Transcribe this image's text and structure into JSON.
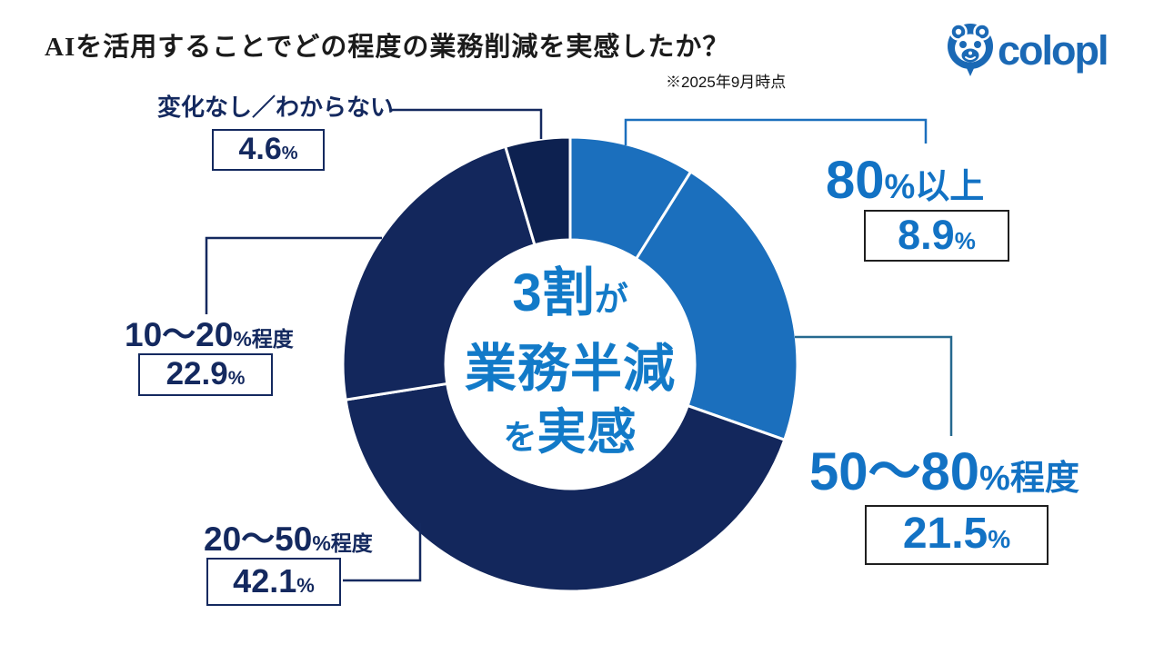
{
  "header": {
    "title": "AIを活用することでどの程度の業務削減を実感したか？",
    "note": "※2025年9月時点"
  },
  "logo": {
    "text": "colopl",
    "color": "#1B69B5"
  },
  "center_label": {
    "l1_big": "3割",
    "l1_small": "が",
    "l2": "業務半減",
    "l3_small": "を",
    "l3_big": "実感",
    "color": "#127AC8"
  },
  "chart_data": {
    "type": "pie",
    "subtype": "donut",
    "title": "AIを活用することでどの程度の業務削減を実感したか？",
    "unit": "%",
    "start_angle_deg": 0,
    "direction": "clockwise",
    "categories": [
      "80%以上",
      "50〜80%程度",
      "20〜50%程度",
      "10〜20%程度",
      "変化なし／わからない"
    ],
    "values": [
      8.9,
      21.5,
      42.1,
      22.9,
      4.6
    ],
    "colors": [
      "#1B6FBD",
      "#1B6FBD",
      "#13275C",
      "#13275C",
      "#0D2150"
    ],
    "divider_color": "#ffffff",
    "center_text": "3割が業務半減を実感"
  },
  "callouts": {
    "c80plus": {
      "main": "80",
      "suffix": "%以上",
      "value": "8.9",
      "unit": "%",
      "line_color": "#1B6FBD",
      "text_color": "#1272C4",
      "box_border": "#1F1F1F"
    },
    "c50_80": {
      "main": "50〜80",
      "suffix": "%程度",
      "value": "21.5",
      "unit": "%",
      "line_color": "#26698F",
      "text_color": "#1272C4",
      "box_border": "#1F1F1F"
    },
    "c20_50": {
      "main": "20〜50",
      "suffix": "%程度",
      "value": "42.1",
      "unit": "%",
      "line_color": "#14295F",
      "text_color": "#14295F",
      "box_border": "#14295F"
    },
    "c10_20": {
      "main": "10〜20",
      "suffix": "%程度",
      "value": "22.9",
      "unit": "%",
      "line_color": "#14295F",
      "text_color": "#14295F",
      "box_border": "#14295F"
    },
    "c_none": {
      "main": "変化なし／わからない",
      "suffix": "",
      "value": "4.6",
      "unit": "%",
      "line_color": "#14295F",
      "text_color": "#14295F",
      "box_border": "#14295F"
    }
  }
}
